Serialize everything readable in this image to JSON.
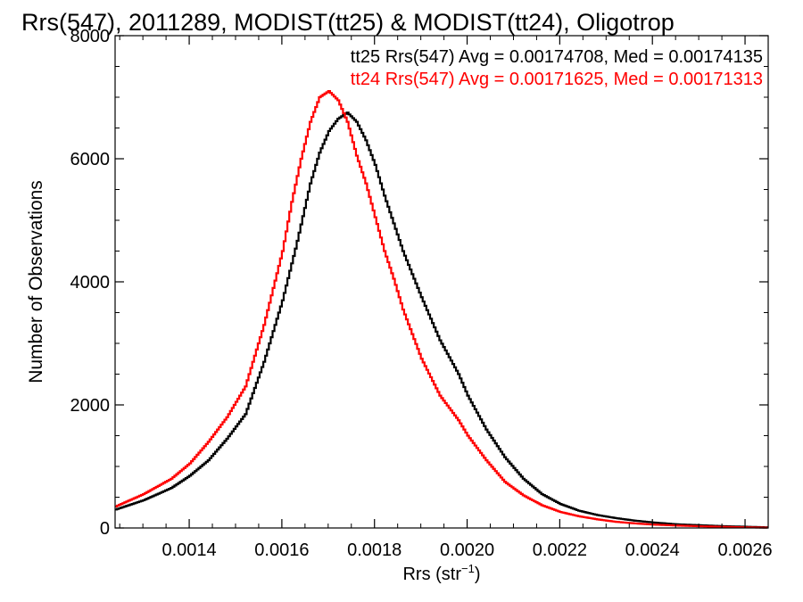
{
  "chart_data": {
    "type": "line",
    "title": "Rrs(547), 2011289, MODIST(tt25) & MODIST(tt24), Oligotrop",
    "xlabel_main": "Rrs (str",
    "xlabel_sup": "−1",
    "xlabel_close": ")",
    "ylabel": "Number of Observations",
    "xlim": [
      0.00124,
      0.00265
    ],
    "ylim": [
      0,
      8000
    ],
    "xticks": [
      0.0014,
      0.0016,
      0.0018,
      0.002,
      0.0022,
      0.0024,
      0.0026
    ],
    "xtick_labels": [
      "0.0014",
      "0.0016",
      "0.0018",
      "0.0020",
      "0.0022",
      "0.0024",
      "0.0026"
    ],
    "yticks": [
      0,
      2000,
      4000,
      6000,
      8000
    ],
    "ytick_labels": [
      "0",
      "2000",
      "4000",
      "6000",
      "8000"
    ],
    "legend_position": "top-right",
    "legend": [
      {
        "text": "tt25 Rrs(547) Avg = 0.00174708, Med = 0.00174135",
        "color": "#000000"
      },
      {
        "text": "tt24 Rrs(547) Avg = 0.00171625, Med = 0.00171313",
        "color": "#ff0000"
      }
    ],
    "series": [
      {
        "name": "tt25",
        "color": "#000000",
        "x": [
          0.00124,
          0.0013,
          0.00136,
          0.0014,
          0.00144,
          0.00148,
          0.00152,
          0.00156,
          0.0016,
          0.00163,
          0.00166,
          0.00168,
          0.0017,
          0.00172,
          0.00174,
          0.00176,
          0.00178,
          0.0018,
          0.00182,
          0.00184,
          0.00186,
          0.0019,
          0.00194,
          0.00198,
          0.002,
          0.00204,
          0.00208,
          0.00212,
          0.00216,
          0.0022,
          0.00224,
          0.00228,
          0.00232,
          0.00236,
          0.0024,
          0.00245,
          0.0025,
          0.00255,
          0.0026,
          0.00265
        ],
        "y": [
          300,
          450,
          650,
          850,
          1100,
          1450,
          1850,
          2700,
          3700,
          4600,
          5600,
          6100,
          6450,
          6650,
          6750,
          6600,
          6300,
          5900,
          5400,
          4950,
          4500,
          3750,
          3050,
          2500,
          2150,
          1600,
          1150,
          800,
          550,
          390,
          280,
          210,
          160,
          120,
          90,
          60,
          45,
          30,
          20,
          10
        ]
      },
      {
        "name": "tt24",
        "color": "#ff0000",
        "x": [
          0.00124,
          0.0013,
          0.00136,
          0.0014,
          0.00144,
          0.00148,
          0.00152,
          0.00156,
          0.0016,
          0.00162,
          0.00164,
          0.00166,
          0.00168,
          0.0017,
          0.00172,
          0.00174,
          0.00176,
          0.00178,
          0.0018,
          0.00182,
          0.00184,
          0.00186,
          0.0019,
          0.00194,
          0.00198,
          0.002,
          0.00204,
          0.00208,
          0.00212,
          0.00216,
          0.0022,
          0.00224,
          0.00228,
          0.00232,
          0.00236,
          0.0024,
          0.00245,
          0.0025,
          0.00255,
          0.0026,
          0.00265
        ],
        "y": [
          350,
          550,
          800,
          1050,
          1400,
          1800,
          2300,
          3300,
          4500,
          5300,
          6000,
          6600,
          7000,
          7100,
          6950,
          6600,
          6050,
          5600,
          5050,
          4500,
          4050,
          3550,
          2750,
          2150,
          1750,
          1500,
          1100,
          750,
          530,
          370,
          260,
          190,
          140,
          100,
          75,
          55,
          40,
          28,
          18,
          10,
          5
        ]
      }
    ]
  }
}
